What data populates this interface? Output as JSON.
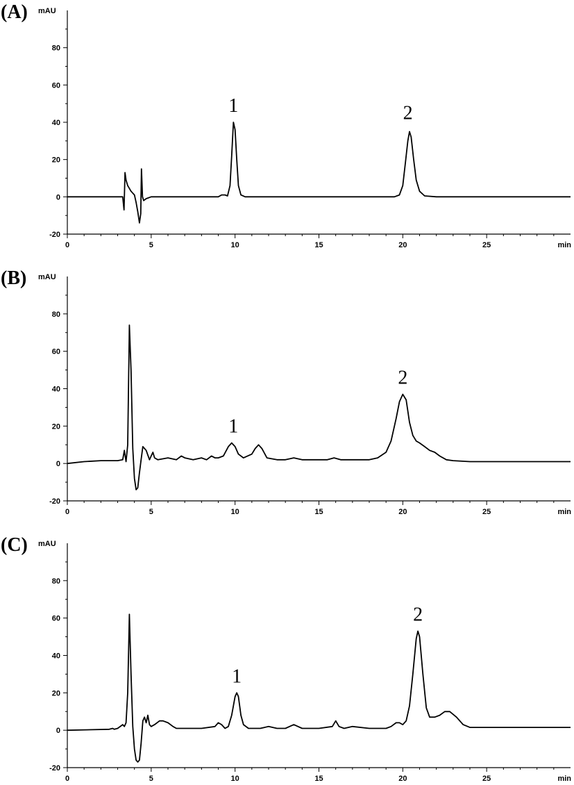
{
  "chart_data": [
    {
      "type": "line",
      "panel_label": "(A)",
      "ylabel": "mAU",
      "xlabel": "min",
      "xlim": [
        0,
        30
      ],
      "ylim": [
        -20,
        100
      ],
      "x_ticks": [
        0,
        5,
        10,
        15,
        20,
        25
      ],
      "y_ticks": [
        -20,
        0,
        20,
        40,
        60,
        80
      ],
      "grid": false,
      "series": [
        {
          "x": [
            0,
            3.2,
            3.3,
            3.38,
            3.44,
            3.5,
            3.6,
            3.8,
            4.0,
            4.1,
            4.2,
            4.3,
            4.38,
            4.42,
            4.48,
            4.55,
            4.7,
            5.0,
            6,
            8,
            9.0,
            9.2,
            9.4,
            9.55,
            9.7,
            9.8,
            9.9,
            10.0,
            10.1,
            10.2,
            10.35,
            10.6,
            11,
            15,
            19.5,
            19.8,
            20.0,
            20.15,
            20.3,
            20.4,
            20.5,
            20.65,
            20.8,
            21.0,
            21.3,
            22,
            30
          ],
          "y": [
            0,
            0,
            0,
            -7,
            13,
            9,
            6,
            3,
            1,
            -3,
            -8,
            -14,
            -9,
            15,
            0,
            -2,
            -1,
            0,
            0,
            0,
            0,
            1,
            1,
            0.5,
            6,
            22,
            40,
            36,
            20,
            6,
            1,
            0,
            0,
            0,
            0,
            1,
            6,
            18,
            30,
            35,
            32,
            20,
            9,
            3,
            0.5,
            0,
            0
          ]
        }
      ],
      "annotations": [
        {
          "text": "1",
          "x": 9.9,
          "y": 40
        },
        {
          "text": "2",
          "x": 20.3,
          "y": 36
        }
      ]
    },
    {
      "type": "line",
      "panel_label": "(B)",
      "ylabel": "mAU",
      "xlabel": "min",
      "xlim": [
        0,
        30
      ],
      "ylim": [
        -20,
        100
      ],
      "x_ticks": [
        0,
        5,
        10,
        15,
        20,
        25
      ],
      "y_ticks": [
        -20,
        0,
        20,
        40,
        60,
        80
      ],
      "grid": false,
      "series": [
        {
          "x": [
            0,
            1.0,
            2.0,
            3.0,
            3.3,
            3.4,
            3.5,
            3.6,
            3.7,
            3.8,
            3.9,
            4.0,
            4.1,
            4.2,
            4.3,
            4.4,
            4.5,
            4.6,
            4.7,
            4.9,
            5.0,
            5.1,
            5.2,
            5.4,
            6.0,
            6.5,
            6.8,
            7.0,
            7.5,
            8.0,
            8.3,
            8.6,
            8.8,
            9.0,
            9.3,
            9.6,
            9.8,
            10.0,
            10.2,
            10.5,
            11.0,
            11.2,
            11.4,
            11.6,
            11.9,
            12.5,
            13.0,
            13.5,
            14,
            15,
            15.5,
            15.9,
            16.3,
            17,
            18,
            18.5,
            19.0,
            19.3,
            19.6,
            19.8,
            20.0,
            20.2,
            20.4,
            20.6,
            20.8,
            21.0,
            21.3,
            21.6,
            21.9,
            22.2,
            22.6,
            23.0,
            24,
            25,
            30
          ],
          "y": [
            0,
            1,
            1.5,
            1.5,
            2,
            7,
            1,
            10,
            74,
            50,
            8,
            -8,
            -14,
            -13,
            -5,
            2,
            9,
            8,
            7,
            2,
            4,
            6,
            3,
            2,
            3,
            2,
            4,
            3,
            2,
            3,
            2,
            4,
            3,
            3,
            4,
            9,
            11,
            9,
            5,
            3,
            5,
            8,
            10,
            8,
            3,
            2,
            2,
            3,
            2,
            2,
            2,
            3,
            2,
            2,
            2,
            3,
            6,
            12,
            24,
            33,
            37,
            34,
            22,
            15,
            12,
            11,
            9,
            7,
            6,
            4,
            2,
            1.5,
            1,
            1,
            1
          ]
        }
      ],
      "annotations": [
        {
          "text": "1",
          "x": 9.9,
          "y": 11
        },
        {
          "text": "2",
          "x": 20.0,
          "y": 37
        }
      ]
    },
    {
      "type": "line",
      "panel_label": "(C)",
      "ylabel": "mAU",
      "xlabel": "min",
      "xlim": [
        0,
        30
      ],
      "ylim": [
        -20,
        100
      ],
      "x_ticks": [
        0,
        5,
        10,
        15,
        20,
        25
      ],
      "y_ticks": [
        -20,
        0,
        20,
        40,
        60,
        80
      ],
      "grid": false,
      "series": [
        {
          "x": [
            0,
            2.5,
            2.7,
            2.8,
            3.0,
            3.3,
            3.4,
            3.5,
            3.6,
            3.7,
            3.8,
            3.9,
            4.0,
            4.1,
            4.2,
            4.3,
            4.4,
            4.5,
            4.6,
            4.7,
            4.8,
            4.9,
            5.0,
            5.2,
            5.5,
            5.7,
            6.0,
            6.3,
            6.5,
            7,
            8,
            8.8,
            9.0,
            9.2,
            9.4,
            9.6,
            9.8,
            10.0,
            10.1,
            10.2,
            10.35,
            10.5,
            10.8,
            11.5,
            12.0,
            12.5,
            13.0,
            13.5,
            14,
            15,
            15.8,
            16.0,
            16.2,
            16.5,
            17,
            18,
            19,
            19.3,
            19.6,
            19.8,
            20.0,
            20.2,
            20.4,
            20.6,
            20.8,
            20.9,
            21.0,
            21.2,
            21.4,
            21.6,
            21.9,
            22.2,
            22.5,
            22.8,
            23.2,
            23.6,
            24,
            25,
            30
          ],
          "y": [
            0,
            0.5,
            1,
            0.5,
            1,
            3,
            2,
            4,
            20,
            62,
            30,
            2,
            -10,
            -16,
            -17,
            -16,
            -7,
            5,
            7,
            4,
            8,
            3,
            2,
            3,
            5,
            5,
            4,
            2,
            1,
            1,
            1,
            2,
            4,
            3,
            1,
            2,
            8,
            18,
            20,
            18,
            8,
            3,
            1,
            1,
            2,
            1,
            1,
            3,
            1,
            1,
            2,
            5,
            2,
            1,
            2,
            1,
            1,
            2,
            4,
            4,
            3,
            5,
            13,
            30,
            49,
            53,
            50,
            30,
            12,
            7,
            7,
            8,
            10,
            10,
            7,
            3,
            1.5,
            1.5,
            1.5
          ]
        }
      ],
      "annotations": [
        {
          "text": "1",
          "x": 10.1,
          "y": 20
        },
        {
          "text": "2",
          "x": 20.9,
          "y": 53
        }
      ]
    }
  ]
}
